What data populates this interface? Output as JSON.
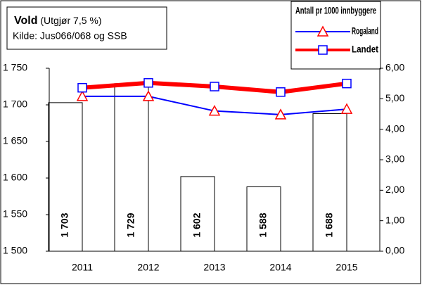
{
  "chart_data": {
    "type": "bar_line",
    "title": "Vold",
    "subtitle": "(Utgjør 7,5 %)",
    "source": "Kilde: Jus066/068 og SSB",
    "legend_title": "Antall pr 1000 innbyggere",
    "categories": [
      "2011",
      "2012",
      "2013",
      "2014",
      "2015"
    ],
    "values": [
      1703,
      1729,
      1602,
      1588,
      1688
    ],
    "value_labels": [
      "1 703",
      "1 729",
      "1 602",
      "1 588",
      "1 688"
    ],
    "color": "#ffffff",
    "series": [
      {
        "name": "Rogaland",
        "color": "#0000ff",
        "marker": "triangle",
        "marker_color": "#ff0000",
        "axis": "y2",
        "values": [
          5.08,
          5.08,
          4.6,
          4.48,
          4.66
        ]
      },
      {
        "name": "Landet",
        "color": "#ff0000",
        "marker": "square",
        "marker_color": "#0000ff",
        "axis": "y2",
        "values": [
          5.36,
          5.52,
          5.4,
          5.22,
          5.5
        ]
      }
    ],
    "ylim": [
      1500,
      1750
    ],
    "yticks": [
      {
        "value": 1500,
        "label": "1 500"
      },
      {
        "value": 1550,
        "label": "1 550"
      },
      {
        "value": 1600,
        "label": "1 600"
      },
      {
        "value": 1650,
        "label": "1 650"
      },
      {
        "value": 1700,
        "label": "1 700"
      },
      {
        "value": 1750,
        "label": "1 750"
      }
    ],
    "y2lim": [
      0,
      6
    ],
    "y2ticks": [
      {
        "value": 0,
        "label": "0,00"
      },
      {
        "value": 1,
        "label": "1,00"
      },
      {
        "value": 2,
        "label": "2,00"
      },
      {
        "value": 3,
        "label": "3,00"
      },
      {
        "value": 4,
        "label": "4,00"
      },
      {
        "value": 5,
        "label": "5,00"
      },
      {
        "value": 6,
        "label": "6,00"
      }
    ]
  }
}
